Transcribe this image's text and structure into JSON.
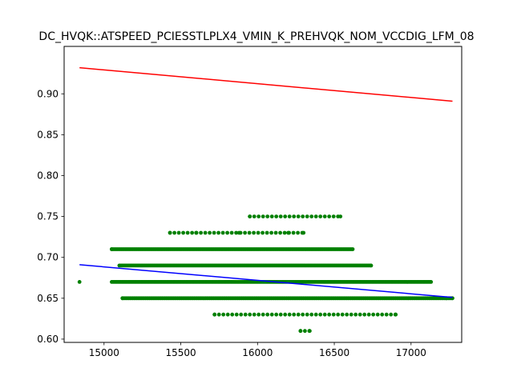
{
  "chart_data": {
    "type": "scatter",
    "title": "DC_HVQK::ATSPEED_PCIESSTLPLX4_VMIN_K_PREHVQK_NOM_VCCDIG_LFM_08",
    "xlabel": "",
    "ylabel": "",
    "xlim": [
      14740,
      17330
    ],
    "ylim": [
      0.596,
      0.958
    ],
    "xticks": [
      15000,
      15500,
      16000,
      16500,
      17000
    ],
    "yticks": [
      0.6,
      0.65,
      0.7,
      0.75,
      0.8,
      0.85,
      0.9
    ],
    "ytick_labels": [
      "0.60",
      "0.65",
      "0.70",
      "0.75",
      "0.80",
      "0.85",
      "0.90"
    ],
    "grid": false,
    "legend": "none",
    "colors": {
      "points": "#008000",
      "upper_line": "#ff0000",
      "fit_line": "#0000ff"
    },
    "scatter_bands": [
      {
        "y": 0.61,
        "x": [
          16280,
          16340
        ]
      },
      {
        "y": 0.63,
        "x": [
          15720,
          16900
        ]
      },
      {
        "y": 0.65,
        "x": [
          15120,
          17270
        ]
      },
      {
        "y": 0.67,
        "x": [
          15050,
          17130
        ]
      },
      {
        "y": 0.69,
        "x": [
          15100,
          16740
        ]
      },
      {
        "y": 0.71,
        "x": [
          15050,
          16620
        ]
      },
      {
        "y": 0.73,
        "x": [
          15430,
          16300
        ]
      },
      {
        "y": 0.75,
        "x": [
          15950,
          16540
        ]
      }
    ],
    "points": [
      [
        14840,
        0.67
      ],
      [
        15050,
        0.71
      ],
      [
        15120,
        0.65
      ],
      [
        15430,
        0.73
      ],
      [
        15600,
        0.73
      ],
      [
        15880,
        0.73
      ],
      [
        15950,
        0.75
      ],
      [
        16200,
        0.73
      ],
      [
        16300,
        0.73
      ],
      [
        16540,
        0.75
      ],
      [
        16280,
        0.61
      ],
      [
        16340,
        0.61
      ],
      [
        17230,
        0.65
      ],
      [
        17270,
        0.65
      ],
      [
        16620,
        0.71
      ],
      [
        16740,
        0.69
      ],
      [
        17130,
        0.67
      ],
      [
        16900,
        0.63
      ],
      [
        15720,
        0.63
      ]
    ],
    "lines": [
      {
        "x": [
          14840,
          17270
        ],
        "y": [
          0.932,
          0.891
        ]
      },
      {
        "x": [
          14840,
          17270
        ],
        "y": [
          0.691,
          0.651
        ]
      }
    ]
  }
}
